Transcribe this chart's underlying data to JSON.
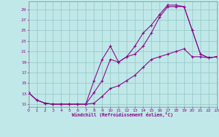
{
  "bg_color": "#c0e8e8",
  "grid_color": "#98c8c8",
  "line_color": "#880088",
  "xlabel": "Windchill (Refroidissement éolien,°C)",
  "xlim": [
    0,
    23
  ],
  "ylim": [
    10.5,
    30.5
  ],
  "yticks": [
    11,
    13,
    15,
    17,
    19,
    21,
    23,
    25,
    27,
    29
  ],
  "xticks": [
    0,
    1,
    2,
    3,
    4,
    5,
    6,
    7,
    8,
    9,
    10,
    11,
    12,
    13,
    14,
    15,
    16,
    17,
    18,
    19,
    20,
    21,
    22,
    23
  ],
  "line1": {
    "x": [
      0,
      1,
      2,
      3,
      4,
      5,
      6,
      7,
      8,
      9,
      10,
      11,
      12,
      13,
      14,
      15,
      16,
      17,
      18,
      19,
      20,
      21,
      22,
      23
    ],
    "y": [
      13.2,
      11.8,
      11.2,
      11.0,
      11.0,
      11.0,
      11.0,
      11.0,
      11.2,
      12.5,
      14.0,
      14.5,
      15.5,
      16.5,
      18.0,
      19.5,
      20.0,
      20.5,
      21.0,
      21.5,
      20.0,
      20.0,
      19.8,
      20.0
    ]
  },
  "line2": {
    "x": [
      0,
      1,
      2,
      3,
      4,
      5,
      6,
      7,
      8,
      9,
      10,
      11,
      12,
      13,
      14,
      15,
      16,
      17,
      18,
      19,
      20,
      21,
      22,
      23
    ],
    "y": [
      13.2,
      11.8,
      11.2,
      11.0,
      11.0,
      11.0,
      11.0,
      11.0,
      13.2,
      15.5,
      19.5,
      19.0,
      20.0,
      20.5,
      22.0,
      24.5,
      27.5,
      29.5,
      29.5,
      29.5,
      25.0,
      20.5,
      19.8,
      20.0
    ]
  },
  "line3": {
    "x": [
      0,
      1,
      2,
      3,
      4,
      5,
      6,
      7,
      8,
      9,
      10,
      11,
      12,
      13,
      14,
      15,
      16,
      17,
      18,
      19,
      20,
      21,
      22,
      23
    ],
    "y": [
      13.2,
      11.8,
      11.2,
      11.0,
      11.0,
      11.0,
      11.0,
      11.0,
      15.5,
      19.5,
      22.0,
      19.0,
      20.0,
      22.0,
      24.5,
      26.0,
      28.0,
      29.8,
      29.8,
      29.5,
      25.0,
      20.5,
      19.8,
      20.0
    ]
  }
}
